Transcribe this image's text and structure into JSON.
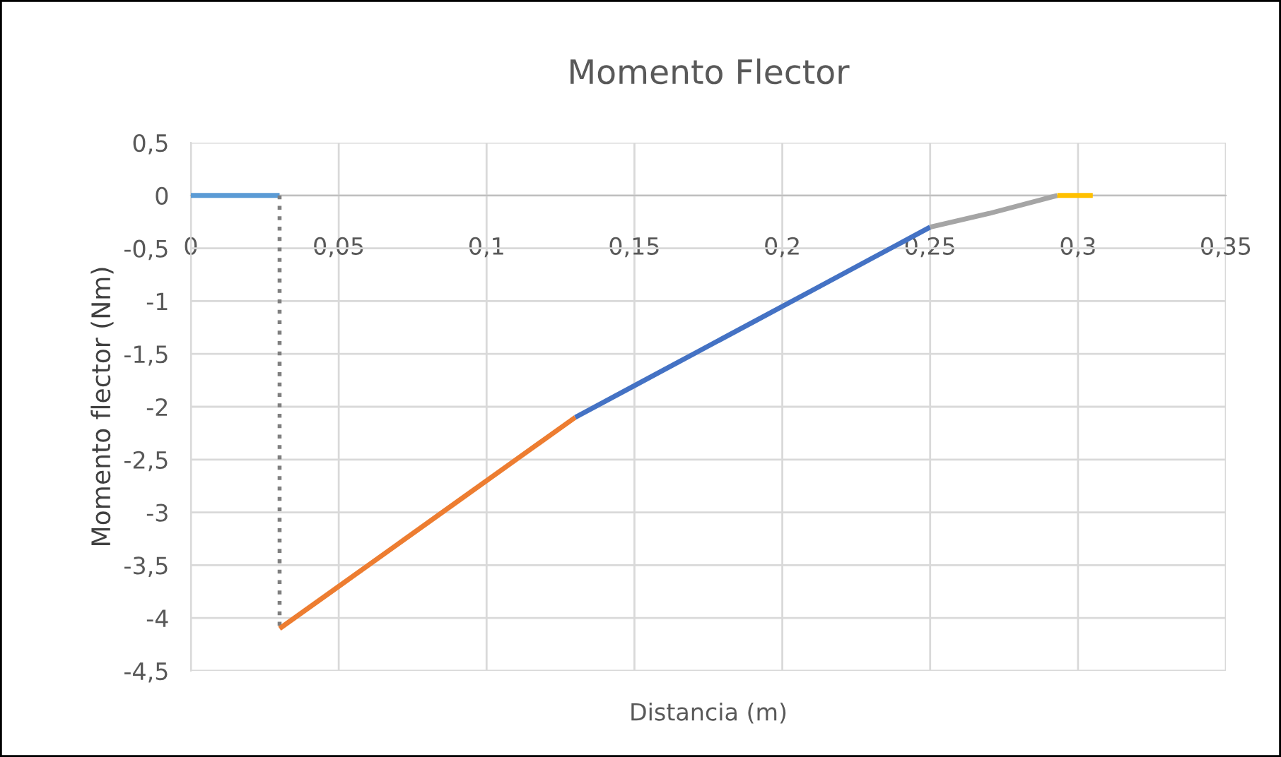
{
  "chart_data": {
    "type": "line",
    "title": "Momento Flector",
    "xlabel": "Distancia (m)",
    "ylabel": "Momento flector (Nm)",
    "xlim": [
      0,
      0.35
    ],
    "ylim": [
      -4.5,
      0.5
    ],
    "xticks": [
      0,
      {
        "value": 0.05,
        "label": "0,05"
      },
      {
        "value": 0.1,
        "label": "0,1"
      },
      {
        "value": 0.15,
        "label": "0,15"
      },
      {
        "value": 0.2,
        "label": "0,2"
      },
      {
        "value": 0.25,
        "label": "0,25"
      },
      {
        "value": 0.3,
        "label": "0,3"
      },
      {
        "value": 0.35,
        "label": "0,35"
      }
    ],
    "yticks": [
      {
        "value": 0.5,
        "label": "0,5"
      },
      0,
      {
        "value": -0.5,
        "label": "-0,5"
      },
      -1,
      {
        "value": -1.5,
        "label": "-1,5"
      },
      -2,
      {
        "value": -2.5,
        "label": "-2,5"
      },
      -3,
      {
        "value": -3.5,
        "label": "-3,5"
      },
      -4,
      {
        "value": -4.5,
        "label": "-4,5"
      }
    ],
    "grid": true,
    "legend": false,
    "series": [
      {
        "color": "#5b9bd5",
        "x": [
          0,
          0.03
        ],
        "values": [
          0,
          0
        ]
      },
      {
        "color": "#7f7f7f",
        "line_style": "dotted",
        "x": [
          0.03,
          0.03
        ],
        "values": [
          0,
          -4.1
        ]
      },
      {
        "color": "#ed7d31",
        "x": [
          0.03,
          0.05,
          0.07,
          0.09,
          0.11,
          0.13
        ],
        "values": [
          -4.1,
          -3.7,
          -3.3,
          -2.9,
          -2.5,
          -2.1
        ]
      },
      {
        "color": "#4472c4",
        "x": [
          0.13,
          0.15,
          0.17,
          0.19,
          0.21,
          0.23,
          0.25
        ],
        "values": [
          -2.1,
          -1.8,
          -1.5,
          -1.2,
          -0.9,
          -0.6,
          -0.3
        ]
      },
      {
        "color": "#a5a5a5",
        "x": [
          0.25,
          0.27,
          0.293
        ],
        "values": [
          -0.3,
          -0.17,
          0
        ]
      },
      {
        "color": "#ffc000",
        "x": [
          0.293,
          0.305
        ],
        "values": [
          0,
          0
        ]
      }
    ]
  }
}
